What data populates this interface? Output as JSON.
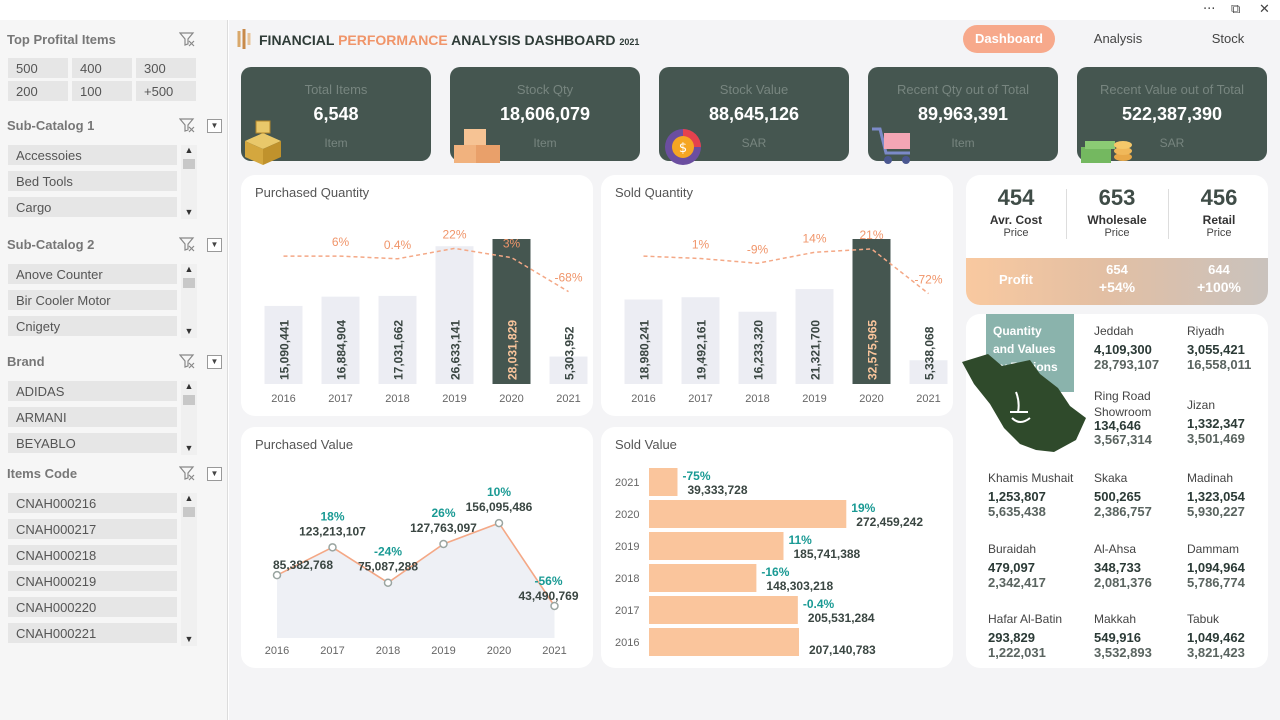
{
  "window": {
    "more": "···",
    "restore": "⧉",
    "close": "✕"
  },
  "slicers": {
    "top_items": {
      "title": "Top Profital Items",
      "options": [
        "500",
        "400",
        "300",
        "200",
        "100",
        "+500"
      ]
    },
    "sub_catalog_1": {
      "title": "Sub-Catalog 1",
      "items": [
        "Accessoies",
        "Bed Tools",
        "Cargo"
      ]
    },
    "sub_catalog_2": {
      "title": "Sub-Catalog 2",
      "items": [
        "Anove Counter",
        "Bir Cooler Motor",
        "Cnigety"
      ]
    },
    "brand": {
      "title": "Brand",
      "items": [
        "ADIDAS",
        "ARMANI",
        "BEYABLO"
      ]
    },
    "items_code": {
      "title": "Items Code",
      "items": [
        "CNAH000216",
        "CNAH000217",
        "CNAH000218",
        "CNAH000219",
        "CNAH000220",
        "CNAH000221"
      ]
    }
  },
  "header": {
    "title_a": "FINANCIAL ",
    "title_b": "PERFORMANCE",
    "title_c": " ANALYSIS DASHBOARD",
    "year": "2021",
    "tabs": [
      "Dashboard",
      "Analysis",
      "Stock"
    ]
  },
  "kpis": [
    {
      "label": "Total Items",
      "value": "6,548",
      "unit": "Item"
    },
    {
      "label": "Stock Qty",
      "value": "18,606,079",
      "unit": "Item"
    },
    {
      "label": "Stock Value",
      "value": "88,645,126",
      "unit": "SAR"
    },
    {
      "label": "Recent Qty out of Total",
      "value": "89,963,391",
      "unit": "Item"
    },
    {
      "label": "Recent Value out of Total",
      "value": "522,387,390",
      "unit": "SAR"
    }
  ],
  "colors": {
    "dark": "#455650",
    "accent": "#f7a98b",
    "peach": "#fac59c",
    "bar_light": "#ecedf3",
    "teal": "#1a9a94"
  },
  "prices": {
    "avg_cost": {
      "value": "454",
      "label1": "Avr. Cost",
      "label2": "Price"
    },
    "wholesale": {
      "value": "653",
      "label1": "Wholesale",
      "label2": "Price"
    },
    "retail": {
      "value": "456",
      "label1": "Retail",
      "label2": "Price"
    },
    "profit_label": "Profit",
    "profit_wholesale": {
      "value": "654",
      "pct": "+54%"
    },
    "profit_retail": {
      "value": "644",
      "pct": "+100%"
    }
  },
  "regions": {
    "title_l1": "Quantity",
    "title_l2": "and Values",
    "title_l3": "by Regions",
    "cities": [
      {
        "name": "Jeddah",
        "qty": "4,109,300",
        "value": "28,793,107"
      },
      {
        "name": "Riyadh",
        "qty": "3,055,421",
        "value": "16,558,011"
      },
      {
        "name": "Ring Road Showroom",
        "qty": "134,646",
        "value": "3,567,314"
      },
      {
        "name": "Jizan",
        "qty": "1,332,347",
        "value": "3,501,469"
      },
      {
        "name": "Khamis Mushait",
        "qty": "1,253,807",
        "value": "5,635,438"
      },
      {
        "name": "Skaka",
        "qty": "500,265",
        "value": "2,386,757"
      },
      {
        "name": "Madinah",
        "qty": "1,323,054",
        "value": "5,930,227"
      },
      {
        "name": "Buraidah",
        "qty": "479,097",
        "value": "2,342,417"
      },
      {
        "name": "Al-Ahsa",
        "qty": "348,733",
        "value": "2,081,376"
      },
      {
        "name": "Dammam",
        "qty": "1,094,964",
        "value": "5,786,774"
      },
      {
        "name": "Hafar Al-Batin",
        "qty": "293,829",
        "value": "1,222,031"
      },
      {
        "name": "Makkah",
        "qty": "549,916",
        "value": "3,532,893"
      },
      {
        "name": "Tabuk",
        "qty": "1,049,462",
        "value": "3,821,423"
      }
    ]
  },
  "chart_data": [
    {
      "type": "bar",
      "title": "Purchased Quantity",
      "categories": [
        "2016",
        "2017",
        "2018",
        "2019",
        "2020",
        "2021"
      ],
      "values": [
        15090441,
        16884904,
        17031662,
        26633141,
        28031829,
        5303952
      ],
      "value_labels": [
        "15,090,441",
        "16,884,904",
        "17,031,662",
        "26,633,141",
        "28,031,829",
        "5,303,952"
      ],
      "growth_labels": [
        "",
        "6%",
        "0.4%",
        "22%",
        "3%",
        "-68%"
      ],
      "growth": [
        null,
        6,
        0.4,
        22,
        3,
        -68
      ],
      "highlight": "2020"
    },
    {
      "type": "bar",
      "title": "Sold Quantity",
      "categories": [
        "2016",
        "2017",
        "2018",
        "2019",
        "2020",
        "2021"
      ],
      "values": [
        18980241,
        19492161,
        16233320,
        21321700,
        32575965,
        5338068
      ],
      "value_labels": [
        "18,980,241",
        "19,492,161",
        "16,233,320",
        "21,321,700",
        "32,575,965",
        "5,338,068"
      ],
      "growth_labels": [
        "",
        "1%",
        "-9%",
        "14%",
        "21%",
        "-72%"
      ],
      "growth": [
        null,
        1,
        -9,
        14,
        21,
        -72
      ],
      "highlight": "2020"
    },
    {
      "type": "line",
      "title": "Purchased Value",
      "categories": [
        "2016",
        "2017",
        "2018",
        "2019",
        "2020",
        "2021"
      ],
      "values": [
        85382768,
        123213107,
        75087288,
        127763097,
        156095486,
        43490769
      ],
      "value_labels": [
        "85,382,768",
        "123,213,107",
        "75,087,288",
        "127,763,097",
        "156,095,486",
        "43,490,769"
      ],
      "growth_labels": [
        "",
        "18%",
        "-24%",
        "26%",
        "10%",
        "-56%"
      ],
      "growth": [
        null,
        18,
        -24,
        26,
        10,
        -56
      ]
    },
    {
      "type": "bar",
      "orientation": "horizontal",
      "title": "Sold Value",
      "categories": [
        "2021",
        "2020",
        "2019",
        "2018",
        "2017",
        "2016"
      ],
      "values": [
        39333728,
        272459242,
        185741388,
        148303218,
        205531284,
        207140783
      ],
      "value_labels": [
        "39,333,728",
        "272,459,242",
        "185,741,388",
        "148,303,218",
        "205,531,284",
        "207,140,783"
      ],
      "growth_labels": [
        "-75%",
        "19%",
        "11%",
        "-16%",
        "-0.4%",
        ""
      ],
      "growth": [
        -75,
        19,
        11,
        -16,
        -0.4,
        null
      ]
    }
  ]
}
